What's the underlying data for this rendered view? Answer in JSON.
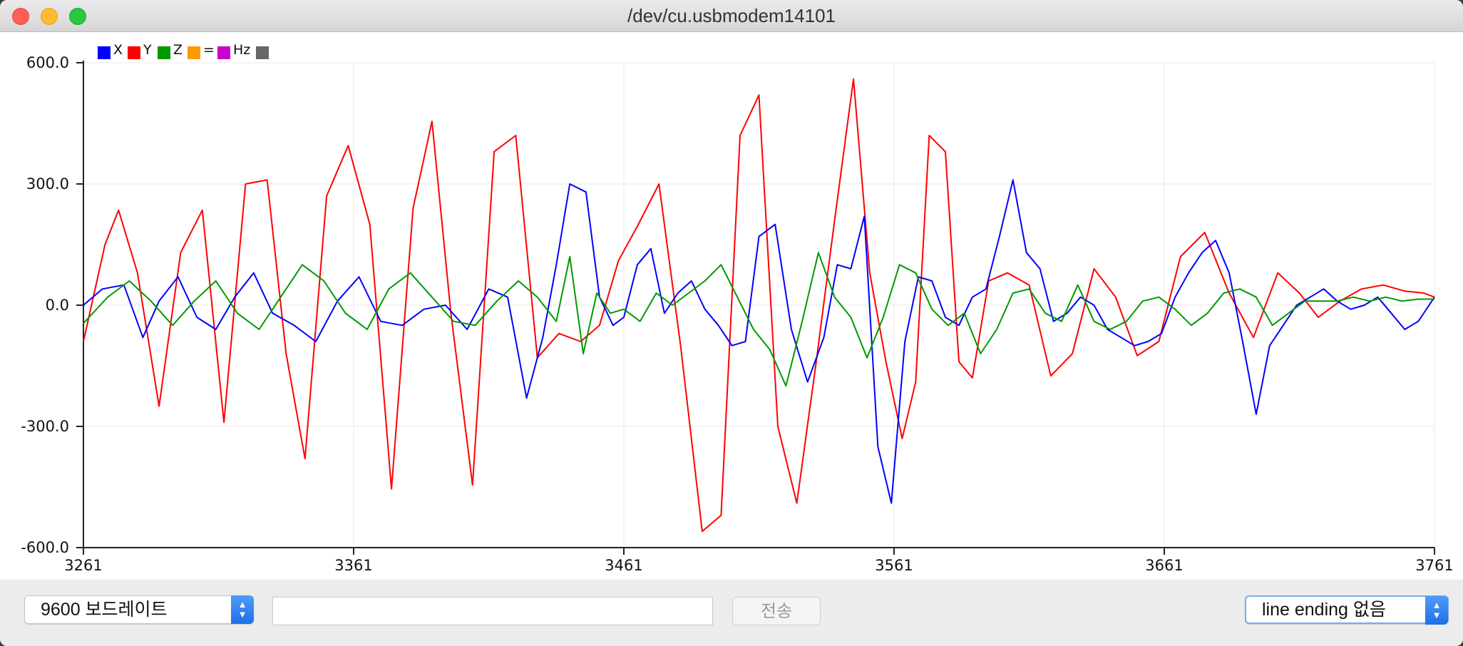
{
  "window": {
    "title": "/dev/cu.usbmodem14101"
  },
  "legend": [
    {
      "label": "X",
      "color": "#0000ff"
    },
    {
      "label": "Y",
      "color": "#ff0000"
    },
    {
      "label": "Z",
      "color": "#009900"
    },
    {
      "label": "=",
      "color": "#ff9900"
    },
    {
      "label": "Hz",
      "color": "#cc00cc"
    },
    {
      "label": "",
      "color": "#666666"
    }
  ],
  "chart_data": {
    "type": "line",
    "xlim": [
      3261,
      3761
    ],
    "ylim": [
      -600,
      600
    ],
    "x_ticks": [
      "3261",
      "3361",
      "3461",
      "3561",
      "3661",
      "3761"
    ],
    "y_ticks": [
      "600.0",
      "300.0",
      "0.0",
      "-300.0",
      "-600.0"
    ],
    "grid": true,
    "legend_position": "top-left",
    "series": [
      {
        "name": "Y",
        "color": "#ff0000",
        "x": [
          3261,
          3269,
          3274,
          3281,
          3289,
          3297,
          3305,
          3313,
          3321,
          3329,
          3336,
          3343,
          3351,
          3359,
          3367,
          3375,
          3383,
          3390,
          3397,
          3405,
          3413,
          3421,
          3429,
          3437,
          3445,
          3452,
          3459,
          3466,
          3474,
          3482,
          3490,
          3497,
          3504,
          3511,
          3518,
          3525,
          3532,
          3539,
          3546,
          3552,
          3558,
          3564,
          3569,
          3574,
          3580,
          3585,
          3590,
          3596,
          3603,
          3611,
          3619,
          3627,
          3635,
          3643,
          3651,
          3659,
          3667,
          3676,
          3685,
          3694,
          3703,
          3711,
          3718,
          3726,
          3734,
          3742,
          3750,
          3757,
          3761
        ],
        "y": [
          -90,
          150,
          235,
          80,
          -250,
          130,
          235,
          -290,
          300,
          310,
          -120,
          -380,
          270,
          395,
          200,
          -455,
          240,
          455,
          -20,
          -445,
          380,
          420,
          -130,
          -70,
          -90,
          -50,
          110,
          195,
          300,
          -100,
          -560,
          -520,
          420,
          520,
          -300,
          -490,
          -150,
          210,
          560,
          80,
          -140,
          -330,
          -190,
          420,
          380,
          -140,
          -180,
          60,
          80,
          50,
          -175,
          -120,
          90,
          20,
          -125,
          -90,
          120,
          180,
          30,
          -80,
          80,
          30,
          -30,
          10,
          40,
          50,
          35,
          30,
          20
        ]
      },
      {
        "name": "X",
        "color": "#0000ff",
        "x": [
          3261,
          3268,
          3276,
          3283,
          3289,
          3296,
          3303,
          3310,
          3317,
          3324,
          3331,
          3339,
          3347,
          3355,
          3363,
          3371,
          3379,
          3387,
          3395,
          3403,
          3411,
          3418,
          3425,
          3431,
          3436,
          3441,
          3447,
          3452,
          3457,
          3461,
          3466,
          3471,
          3476,
          3481,
          3486,
          3491,
          3496,
          3501,
          3506,
          3511,
          3517,
          3523,
          3529,
          3535,
          3540,
          3545,
          3550,
          3555,
          3560,
          3565,
          3570,
          3575,
          3580,
          3585,
          3590,
          3595,
          3600,
          3605,
          3610,
          3615,
          3620,
          3625,
          3630,
          3635,
          3640,
          3645,
          3650,
          3655,
          3660,
          3665,
          3670,
          3675,
          3680,
          3685,
          3690,
          3695,
          3700,
          3705,
          3710,
          3715,
          3720,
          3725,
          3730,
          3735,
          3740,
          3745,
          3750,
          3755,
          3761
        ],
        "y": [
          0,
          40,
          50,
          -80,
          10,
          70,
          -30,
          -60,
          20,
          80,
          -20,
          -50,
          -90,
          10,
          70,
          -40,
          -50,
          -10,
          0,
          -60,
          40,
          20,
          -230,
          -80,
          100,
          300,
          280,
          20,
          -50,
          -30,
          100,
          140,
          -20,
          30,
          60,
          -10,
          -50,
          -100,
          -90,
          170,
          200,
          -60,
          -190,
          -80,
          100,
          90,
          220,
          -350,
          -490,
          -90,
          70,
          60,
          -30,
          -50,
          20,
          40,
          170,
          310,
          130,
          90,
          -40,
          -20,
          20,
          0,
          -60,
          -80,
          -100,
          -90,
          -70,
          20,
          80,
          130,
          160,
          80,
          -90,
          -270,
          -100,
          -50,
          0,
          20,
          40,
          10,
          -10,
          0,
          20,
          -20,
          -60,
          -40,
          20
        ]
      },
      {
        "name": "Z",
        "color": "#009900",
        "x": [
          3261,
          3270,
          3278,
          3286,
          3294,
          3302,
          3310,
          3318,
          3326,
          3334,
          3342,
          3350,
          3358,
          3366,
          3374,
          3382,
          3390,
          3398,
          3406,
          3414,
          3422,
          3429,
          3436,
          3441,
          3446,
          3451,
          3456,
          3461,
          3467,
          3473,
          3479,
          3485,
          3491,
          3497,
          3503,
          3509,
          3515,
          3521,
          3527,
          3533,
          3539,
          3545,
          3551,
          3557,
          3563,
          3569,
          3575,
          3581,
          3587,
          3593,
          3599,
          3605,
          3611,
          3617,
          3623,
          3629,
          3635,
          3641,
          3647,
          3653,
          3659,
          3665,
          3671,
          3677,
          3683,
          3689,
          3695,
          3701,
          3707,
          3713,
          3719,
          3725,
          3731,
          3737,
          3743,
          3749,
          3755,
          3761
        ],
        "y": [
          -45,
          20,
          60,
          10,
          -50,
          10,
          60,
          -20,
          -60,
          20,
          100,
          60,
          -20,
          -60,
          40,
          80,
          20,
          -40,
          -50,
          10,
          60,
          20,
          -40,
          120,
          -120,
          30,
          -20,
          -10,
          -40,
          30,
          0,
          30,
          60,
          100,
          20,
          -60,
          -110,
          -200,
          -40,
          130,
          20,
          -30,
          -130,
          -30,
          100,
          80,
          -10,
          -50,
          -20,
          -120,
          -60,
          30,
          40,
          -20,
          -40,
          50,
          -40,
          -60,
          -40,
          10,
          20,
          -10,
          -50,
          -20,
          30,
          40,
          20,
          -50,
          -20,
          10,
          10,
          10,
          20,
          10,
          20,
          10,
          15,
          15
        ]
      }
    ]
  },
  "bottom": {
    "baud_selected": "9600 보드레이트",
    "send_input_value": "",
    "send_label": "전송",
    "line_ending_selected": "line ending 없음"
  }
}
